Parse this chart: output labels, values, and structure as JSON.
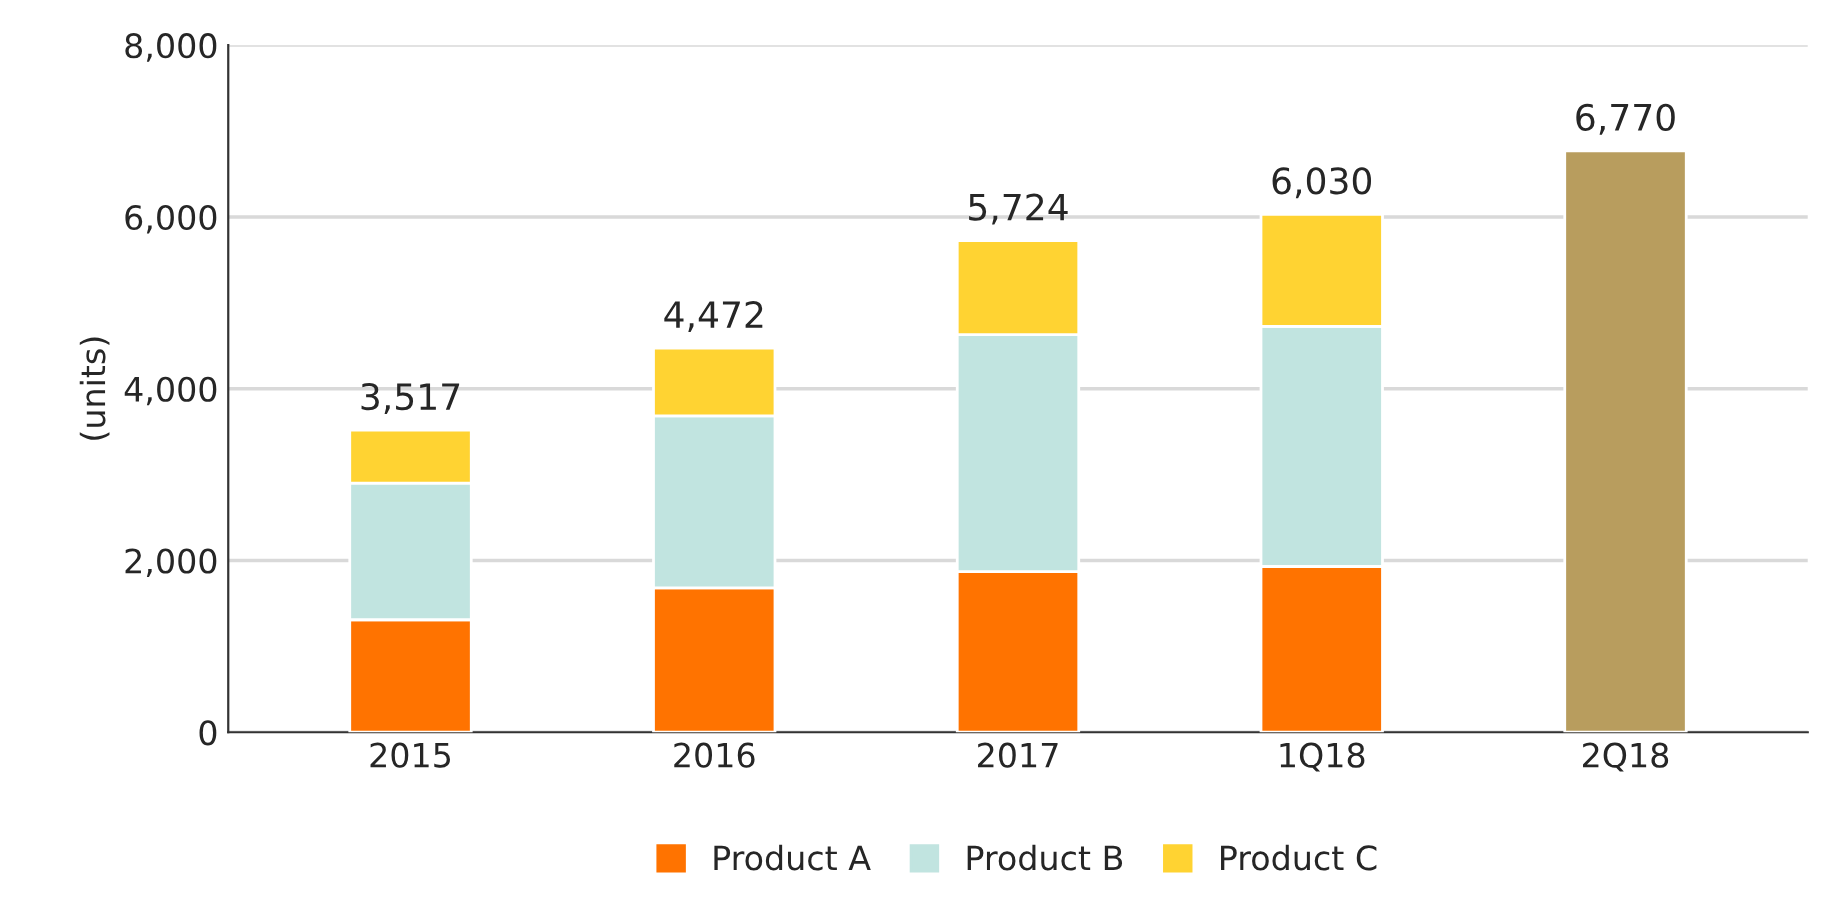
{
  "chart_data": {
    "type": "bar",
    "stacked": true,
    "ylabel": "(units)",
    "categories": [
      "2015",
      "2016",
      "2017",
      "1Q18",
      "2Q18"
    ],
    "series": [
      {
        "name": "Product A",
        "color": "#ff7300",
        "values": [
          1310,
          1680,
          1870,
          1930,
          null
        ]
      },
      {
        "name": "Product B",
        "color": "#c1e4e0",
        "values": [
          1590,
          2005,
          2760,
          2795,
          null
        ]
      },
      {
        "name": "Product C",
        "color": "#ffd332",
        "values": [
          617,
          787,
          1094,
          1305,
          null
        ]
      },
      {
        "color": "#b89d5e",
        "values": [
          null,
          null,
          null,
          null,
          6770
        ]
      }
    ],
    "totals": [
      "3,517",
      "4,472",
      "5,724",
      "6,030",
      "6,770"
    ],
    "ylim": [
      0,
      8000
    ],
    "yticks": [
      {
        "value": 0,
        "label": "0"
      },
      {
        "value": 2000,
        "label": "2,000"
      },
      {
        "value": 4000,
        "label": "4,000"
      },
      {
        "value": 6000,
        "label": "6,000"
      },
      {
        "value": 8000,
        "label": "8,000"
      }
    ],
    "grid": "y",
    "legend": "bottom"
  }
}
